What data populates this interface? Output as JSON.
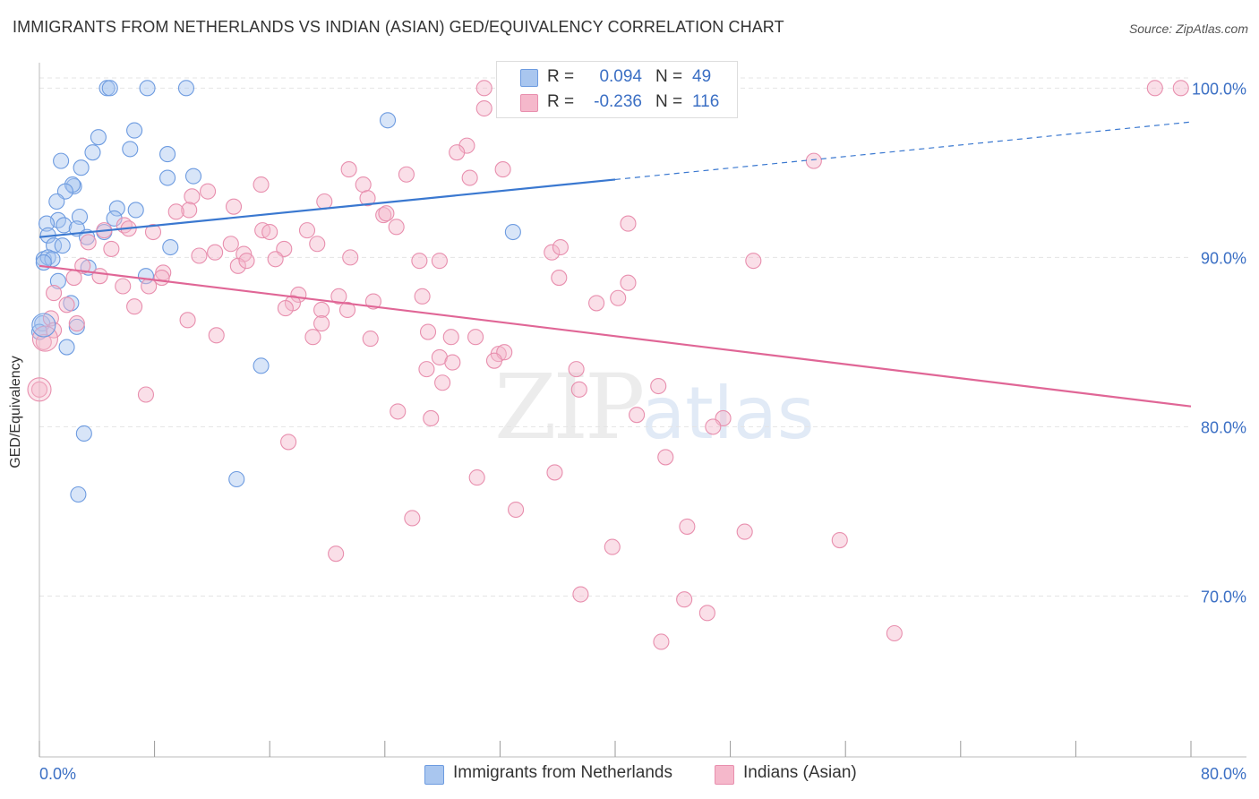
{
  "title": "IMMIGRANTS FROM NETHERLANDS VS INDIAN (ASIAN) GED/EQUIVALENCY CORRELATION CHART",
  "source": "Source: ZipAtlas.com",
  "watermark": {
    "zip": "ZIP",
    "atlas": "atlas"
  },
  "stats": [
    {
      "r_label": "R =",
      "r_value": "0.094",
      "n_label": "N =",
      "n_value": "49",
      "color": "#a9c6ef"
    },
    {
      "r_label": "R =",
      "r_value": "-0.236",
      "n_label": "N =",
      "n_value": "116",
      "color": "#f5b8cb"
    }
  ],
  "legend": [
    {
      "label": "Immigrants from Netherlands",
      "color": "#a9c6ef"
    },
    {
      "label": "Indians (Asian)",
      "color": "#f5b8cb"
    }
  ],
  "colors": {
    "blue_fill": "#a9c6ef",
    "blue_stroke": "#6d9be0",
    "blue_line": "#3a78d0",
    "pink_fill": "#f5b8cb",
    "pink_stroke": "#e88fae",
    "pink_line": "#e06696",
    "axis_text": "#3b6fc4",
    "grid": "#e4e4e4"
  },
  "chart_data": {
    "type": "scatter",
    "title": "IMMIGRANTS FROM NETHERLANDS VS INDIAN (ASIAN) GED/EQUIVALENCY CORRELATION CHART",
    "xlabel": "",
    "ylabel": "GED/Equivalency",
    "xlim": [
      0,
      80
    ],
    "ylim": [
      60.5,
      101.5
    ],
    "x_tick_labels": [
      "0.0%",
      "80.0%"
    ],
    "y_ticks": [
      70,
      80,
      90,
      100
    ],
    "y_tick_labels": [
      "70.0%",
      "80.0%",
      "90.0%",
      "100.0%"
    ],
    "grid": true,
    "series": [
      {
        "name": "Immigrants from Netherlands",
        "trend": {
          "x0": 0,
          "y0": 91.2,
          "x1": 40,
          "y1": 94.6,
          "dashed_to_x": 80,
          "dashed_to_y": 98.0
        },
        "points": [
          [
            4.7,
            100
          ],
          [
            4.9,
            100
          ],
          [
            7.5,
            100
          ],
          [
            10.2,
            100
          ],
          [
            24.2,
            98.1
          ],
          [
            4.1,
            97.1
          ],
          [
            6.6,
            97.5
          ],
          [
            6.3,
            96.4
          ],
          [
            3.7,
            96.2
          ],
          [
            1.5,
            95.7
          ],
          [
            2.9,
            95.3
          ],
          [
            8.9,
            96.1
          ],
          [
            10.7,
            94.8
          ],
          [
            8.9,
            94.7
          ],
          [
            2.4,
            94.2
          ],
          [
            2.3,
            94.3
          ],
          [
            1.8,
            93.9
          ],
          [
            1.2,
            93.3
          ],
          [
            5.4,
            92.9
          ],
          [
            6.7,
            92.8
          ],
          [
            5.2,
            92.3
          ],
          [
            2.8,
            92.4
          ],
          [
            1.3,
            92.2
          ],
          [
            0.5,
            92.0
          ],
          [
            1.7,
            91.9
          ],
          [
            2.6,
            91.7
          ],
          [
            3.3,
            91.2
          ],
          [
            4.5,
            91.5
          ],
          [
            0.6,
            91.3
          ],
          [
            1.0,
            90.7
          ],
          [
            1.6,
            90.7
          ],
          [
            9.1,
            90.6
          ],
          [
            0.3,
            89.9
          ],
          [
            0.6,
            90.0
          ],
          [
            0.9,
            89.9
          ],
          [
            3.4,
            89.4
          ],
          [
            7.4,
            88.9
          ],
          [
            1.3,
            88.6
          ],
          [
            2.2,
            87.3
          ],
          [
            2.6,
            85.9
          ],
          [
            0.2,
            86.1
          ],
          [
            0.0,
            85.6
          ],
          [
            1.9,
            84.7
          ],
          [
            15.4,
            83.6
          ],
          [
            32.9,
            91.5
          ],
          [
            3.1,
            79.6
          ],
          [
            13.7,
            76.9
          ],
          [
            2.7,
            76.0
          ],
          [
            0.3,
            89.7
          ]
        ]
      },
      {
        "name": "Indians (Asian)",
        "trend": {
          "x0": 0,
          "y0": 89.5,
          "x1": 80,
          "y1": 81.2
        },
        "points": [
          [
            30.9,
            100
          ],
          [
            47.1,
            100
          ],
          [
            79.3,
            100
          ],
          [
            77.5,
            100
          ],
          [
            29.7,
            96.6
          ],
          [
            29.0,
            96.2
          ],
          [
            32.2,
            95.2
          ],
          [
            53.8,
            95.7
          ],
          [
            21.5,
            95.2
          ],
          [
            29.9,
            94.7
          ],
          [
            25.5,
            94.9
          ],
          [
            22.5,
            94.3
          ],
          [
            15.4,
            94.3
          ],
          [
            11.7,
            93.9
          ],
          [
            10.6,
            93.6
          ],
          [
            19.8,
            93.3
          ],
          [
            22.8,
            93.5
          ],
          [
            13.5,
            93.0
          ],
          [
            10.4,
            92.8
          ],
          [
            23.9,
            92.5
          ],
          [
            24.1,
            92.6
          ],
          [
            9.5,
            92.7
          ],
          [
            40.9,
            92.0
          ],
          [
            15.5,
            91.6
          ],
          [
            5.9,
            91.9
          ],
          [
            6.2,
            91.7
          ],
          [
            7.9,
            91.5
          ],
          [
            16.0,
            91.5
          ],
          [
            18.6,
            91.6
          ],
          [
            24.8,
            91.8
          ],
          [
            4.5,
            91.6
          ],
          [
            3.4,
            90.9
          ],
          [
            5.0,
            90.5
          ],
          [
            12.2,
            90.3
          ],
          [
            19.3,
            90.8
          ],
          [
            35.6,
            90.3
          ],
          [
            13.3,
            90.8
          ],
          [
            17.0,
            90.5
          ],
          [
            36.2,
            90.6
          ],
          [
            11.1,
            90.1
          ],
          [
            14.2,
            90.2
          ],
          [
            16.4,
            89.9
          ],
          [
            21.6,
            90.0
          ],
          [
            27.8,
            89.8
          ],
          [
            8.6,
            89.1
          ],
          [
            13.8,
            89.5
          ],
          [
            14.4,
            89.8
          ],
          [
            26.4,
            89.8
          ],
          [
            49.6,
            89.8
          ],
          [
            3.0,
            89.5
          ],
          [
            2.4,
            88.8
          ],
          [
            4.2,
            88.9
          ],
          [
            7.6,
            88.3
          ],
          [
            8.5,
            88.8
          ],
          [
            36.1,
            88.8
          ],
          [
            5.8,
            88.3
          ],
          [
            18.0,
            87.8
          ],
          [
            20.8,
            87.7
          ],
          [
            26.6,
            87.7
          ],
          [
            40.9,
            88.5
          ],
          [
            1.0,
            87.9
          ],
          [
            1.9,
            87.2
          ],
          [
            6.6,
            87.1
          ],
          [
            17.6,
            87.3
          ],
          [
            21.4,
            86.9
          ],
          [
            23.2,
            87.4
          ],
          [
            38.7,
            87.3
          ],
          [
            40.2,
            87.6
          ],
          [
            19.6,
            86.9
          ],
          [
            17.1,
            87.0
          ],
          [
            2.6,
            86.1
          ],
          [
            10.3,
            86.3
          ],
          [
            19.6,
            86.1
          ],
          [
            30.3,
            85.3
          ],
          [
            0.8,
            86.4
          ],
          [
            1.0,
            85.7
          ],
          [
            0.3,
            85.0
          ],
          [
            12.3,
            85.4
          ],
          [
            19.0,
            85.3
          ],
          [
            23.0,
            85.2
          ],
          [
            27.0,
            85.6
          ],
          [
            28.6,
            85.3
          ],
          [
            31.9,
            84.3
          ],
          [
            32.3,
            84.4
          ],
          [
            27.8,
            84.1
          ],
          [
            28.7,
            83.8
          ],
          [
            26.9,
            83.4
          ],
          [
            31.6,
            83.9
          ],
          [
            37.3,
            83.4
          ],
          [
            28.0,
            82.6
          ],
          [
            37.5,
            82.2
          ],
          [
            43.0,
            82.4
          ],
          [
            7.4,
            81.9
          ],
          [
            24.9,
            80.9
          ],
          [
            27.2,
            80.5
          ],
          [
            41.5,
            80.7
          ],
          [
            47.5,
            80.5
          ],
          [
            46.8,
            80.0
          ],
          [
            0.0,
            82.2
          ],
          [
            17.3,
            79.1
          ],
          [
            43.5,
            78.2
          ],
          [
            30.4,
            77.0
          ],
          [
            35.8,
            77.3
          ],
          [
            33.1,
            75.1
          ],
          [
            25.9,
            74.6
          ],
          [
            45.0,
            74.1
          ],
          [
            49.0,
            73.8
          ],
          [
            55.6,
            73.3
          ],
          [
            39.8,
            72.9
          ],
          [
            20.6,
            72.5
          ],
          [
            37.6,
            70.1
          ],
          [
            44.8,
            69.8
          ],
          [
            46.4,
            69.0
          ],
          [
            43.2,
            67.3
          ],
          [
            59.4,
            67.8
          ],
          [
            30.9,
            98.8
          ]
        ]
      }
    ]
  }
}
